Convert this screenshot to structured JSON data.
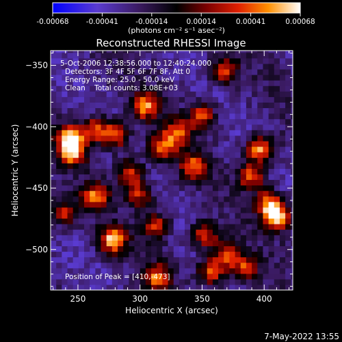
{
  "chart_data": {
    "type": "heatmap",
    "title": "Reconstructed RHESSI Image",
    "xlabel": "Heliocentric X (arcsec)",
    "ylabel": "Heliocentric Y (arcsec)",
    "xlim": [
      228,
      423
    ],
    "ylim": [
      -533,
      -338
    ],
    "x_ticks": [
      250,
      300,
      350,
      400
    ],
    "y_ticks": [
      -350,
      -400,
      -450,
      -500
    ],
    "colorbar": {
      "ticks": [
        "-0.00068",
        "-0.00041",
        "-0.00014",
        "0.00014",
        "0.00041",
        "0.00068"
      ],
      "range": [
        -0.00068,
        0.00068
      ],
      "unit_label": "(photons cm⁻² s⁻¹ asec⁻²)"
    },
    "annotations": {
      "time": "5-Oct-2006 12:38:56.000 to 12:40:24.000",
      "detectors": "Detectors: 3F 4F 5F 6F 7F 8F, Att 0",
      "energy": "Energy Range: 25.0 - 50.0 keV",
      "clean": "Clean    Total counts: 3.08E+03",
      "peak": "Position of Peak = [410,-473]"
    },
    "bright_sources": [
      {
        "x": 244,
        "y": -409,
        "v": 0.0006
      },
      {
        "x": 246,
        "y": -421,
        "v": 0.0005
      },
      {
        "x": 304,
        "y": -383,
        "v": 0.0005
      },
      {
        "x": 280,
        "y": -407,
        "v": 0.00045
      },
      {
        "x": 264,
        "y": -402,
        "v": 0.0004
      },
      {
        "x": 278,
        "y": -492,
        "v": 0.0006
      },
      {
        "x": 264,
        "y": -457,
        "v": 0.00045
      },
      {
        "x": 292,
        "y": -437,
        "v": 0.0004
      },
      {
        "x": 318,
        "y": -417,
        "v": 0.00042
      },
      {
        "x": 330,
        "y": -404,
        "v": 0.00038
      },
      {
        "x": 350,
        "y": -391,
        "v": 0.00038
      },
      {
        "x": 343,
        "y": -432,
        "v": 0.0004
      },
      {
        "x": 368,
        "y": -355,
        "v": 0.00035
      },
      {
        "x": 396,
        "y": -418,
        "v": 0.00055
      },
      {
        "x": 390,
        "y": -440,
        "v": 0.00045
      },
      {
        "x": 410,
        "y": -473,
        "v": 0.00068
      },
      {
        "x": 404,
        "y": -462,
        "v": 0.00045
      },
      {
        "x": 352,
        "y": -488,
        "v": 0.00038
      },
      {
        "x": 370,
        "y": -503,
        "v": 0.00035
      },
      {
        "x": 358,
        "y": -518,
        "v": 0.00045
      },
      {
        "x": 313,
        "y": -480,
        "v": 0.00035
      },
      {
        "x": 314,
        "y": -522,
        "v": 0.0004
      },
      {
        "x": 384,
        "y": -515,
        "v": 0.00035
      },
      {
        "x": 238,
        "y": -470,
        "v": 0.0003
      },
      {
        "x": 300,
        "y": -455,
        "v": 0.0003
      }
    ]
  },
  "footer": {
    "timestamp": "7-May-2022 13:55"
  }
}
